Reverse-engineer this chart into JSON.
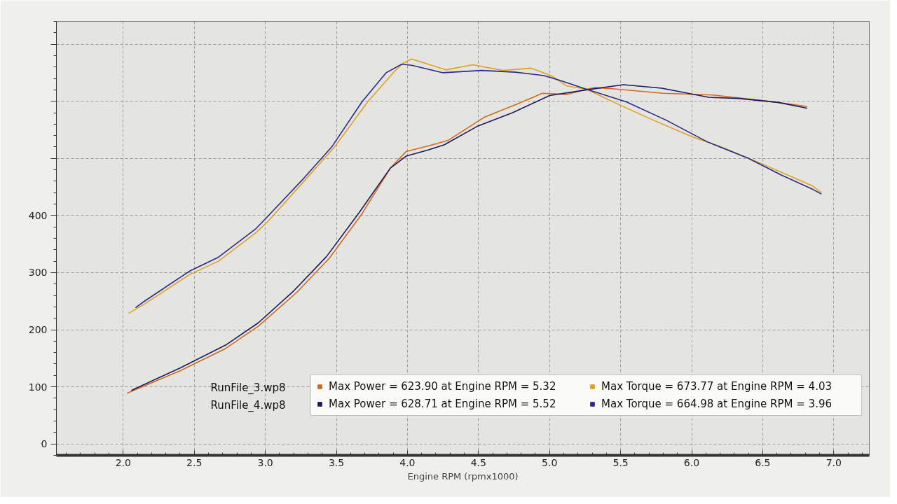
{
  "chart_data": {
    "type": "line",
    "xlabel": "Engine RPM (rpmx1000)",
    "xlim": [
      1.53,
      7.25
    ],
    "ylim": [
      -20,
      740
    ],
    "xticks": [
      {
        "value": 2,
        "label": "2.0"
      },
      {
        "value": 2.5,
        "label": "2.5"
      },
      {
        "value": 3,
        "label": "3.0"
      },
      {
        "value": 3.5,
        "label": "3.5"
      },
      {
        "value": 4,
        "label": "4.0"
      },
      {
        "value": 4.5,
        "label": "4.5"
      },
      {
        "value": 5,
        "label": "5.0"
      },
      {
        "value": 5.5,
        "label": "5.5"
      },
      {
        "value": 6,
        "label": "6.0"
      },
      {
        "value": 6.5,
        "label": "6.5"
      },
      {
        "value": 7,
        "label": "7.0"
      }
    ],
    "yticks": [
      0,
      100,
      200,
      300,
      400,
      {
        "value": 500,
        "label": null
      },
      {
        "value": 600,
        "label": null
      },
      {
        "value": 700,
        "label": null
      }
    ],
    "grid": true,
    "legend": "bottom right",
    "line_style": "solid",
    "annotations": [
      "RunFile_3.wp8",
      "RunFile_4.wp8"
    ],
    "series": [
      {
        "name": "Max Power = 623.90 at Engine RPM = 5.32",
        "color": "#d2691e",
        "x": [
          2.03,
          2.4,
          2.72,
          2.95,
          3.22,
          3.45,
          3.68,
          3.88,
          3.99,
          4.15,
          4.29,
          4.54,
          4.77,
          4.95,
          5.12,
          5.26,
          5.32,
          5.44,
          5.8,
          6.15,
          6.51,
          6.81
        ],
        "values": [
          89,
          128,
          167,
          206,
          265,
          325,
          403,
          483,
          512,
          522,
          532,
          572,
          595,
          614,
          612,
          621,
          624,
          622,
          614,
          611,
          601,
          591
        ]
      },
      {
        "name": "Max Torque = 673.77 at Engine RPM = 4.03",
        "color": "#e0a020",
        "x": [
          2.04,
          2.15,
          2.47,
          2.67,
          2.93,
          3.02,
          3.29,
          3.49,
          3.72,
          3.9,
          3.97,
          4.03,
          4.27,
          4.46,
          4.67,
          4.87,
          5.01,
          5.12,
          5.26,
          5.49,
          5.73,
          6.01,
          6.2,
          6.49,
          6.85,
          6.91
        ],
        "values": [
          229,
          245,
          297,
          320,
          369,
          390,
          465,
          521,
          599,
          650,
          667,
          674,
          655,
          664,
          654,
          658,
          645,
          627,
          621,
          594,
          567,
          537,
          521,
          491,
          452,
          440
        ]
      },
      {
        "name": "Max Power = 628.71 at Engine RPM = 5.52",
        "color": "#1a1a5c",
        "x": [
          2.06,
          2.4,
          2.72,
          2.95,
          3.2,
          3.43,
          3.66,
          3.88,
          3.99,
          4.15,
          4.26,
          4.49,
          4.74,
          5.0,
          5.26,
          5.52,
          5.79,
          6.12,
          6.33,
          6.61,
          6.81
        ],
        "values": [
          94,
          133,
          173,
          212,
          268,
          328,
          405,
          483,
          504,
          515,
          524,
          556,
          580,
          610,
          620,
          629,
          623,
          607,
          605,
          598,
          588
        ]
      },
      {
        "name": "Max Torque = 664.98 at Engine RPM = 3.96",
        "color": "#2a2a8c",
        "x": [
          2.09,
          2.15,
          2.47,
          2.67,
          2.93,
          3.0,
          3.27,
          3.47,
          3.68,
          3.85,
          3.96,
          4.03,
          4.25,
          4.52,
          4.76,
          4.96,
          5.08,
          5.26,
          5.54,
          5.82,
          6.11,
          6.4,
          6.63,
          6.85,
          6.91
        ],
        "values": [
          239,
          250,
          303,
          327,
          376,
          394,
          465,
          521,
          599,
          650,
          665,
          663,
          650,
          654,
          651,
          645,
          636,
          621,
          599,
          567,
          529,
          500,
          471,
          446,
          438
        ]
      }
    ]
  }
}
